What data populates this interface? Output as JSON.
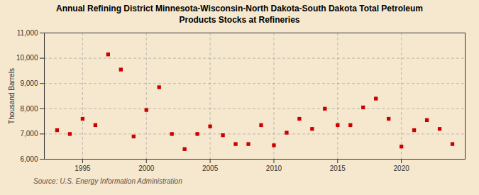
{
  "chart_data": {
    "type": "scatter",
    "title": "Annual Refining District Minnesota-Wisconsin-North Dakota-South Dakota Total Petroleum\nProducts Stocks at Refineries",
    "ylabel": "Thousand Barrels",
    "source": "Source: U.S. Energy Information Administration",
    "x": [
      1993,
      1994,
      1995,
      1996,
      1997,
      1998,
      1999,
      2000,
      2001,
      2002,
      2003,
      2004,
      2005,
      2006,
      2007,
      2008,
      2009,
      2010,
      2011,
      2012,
      2013,
      2014,
      2015,
      2016,
      2017,
      2018,
      2019,
      2020,
      2021,
      2022,
      2023,
      2024
    ],
    "values": [
      7150,
      7000,
      7600,
      7350,
      10150,
      9550,
      6900,
      7950,
      8850,
      7000,
      6400,
      7000,
      7300,
      6950,
      6600,
      6600,
      7350,
      6550,
      7050,
      7600,
      7200,
      8000,
      7350,
      7350,
      8050,
      8400,
      7600,
      6500,
      7150,
      7550,
      7200,
      6600
    ],
    "color": "#cc0000",
    "marker": "square",
    "xlim": [
      1992,
      2025
    ],
    "xticks": [
      1995,
      2000,
      2005,
      2010,
      2015,
      2020
    ],
    "ylim": [
      6000,
      11000
    ],
    "yticks": [
      {
        "value": 6000,
        "label": "6,000"
      },
      {
        "value": 7000,
        "label": "7,000"
      },
      {
        "value": 8000,
        "label": "8,000"
      },
      {
        "value": 9000,
        "label": "9,000"
      },
      {
        "value": 10000,
        "label": "10,000"
      },
      {
        "value": 11000,
        "label": "11,000"
      }
    ],
    "grid": true
  }
}
